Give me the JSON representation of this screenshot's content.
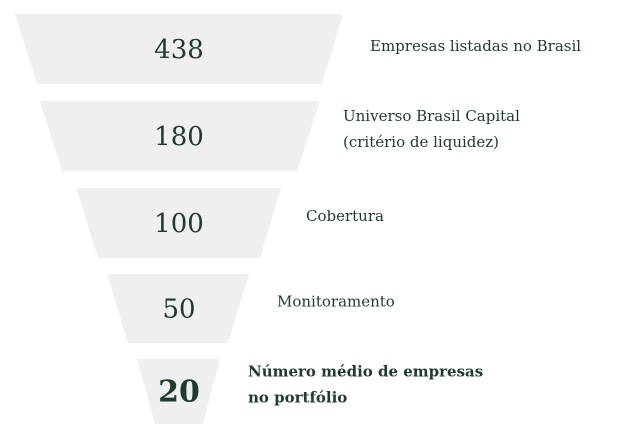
{
  "funnel": {
    "stages": [
      {
        "value": 438,
        "label": [
          "Empresas listadas no Brasil"
        ]
      },
      {
        "value": 180,
        "label": [
          "Universo Brasil Capital",
          "(critério de liquidez)"
        ]
      },
      {
        "value": 100,
        "label": [
          "Cobertura"
        ]
      },
      {
        "value": 50,
        "label": [
          "Monitoramento"
        ]
      },
      {
        "value": 20,
        "label": [
          "Número médio de empresas",
          "no portfólio"
        ]
      }
    ]
  }
}
